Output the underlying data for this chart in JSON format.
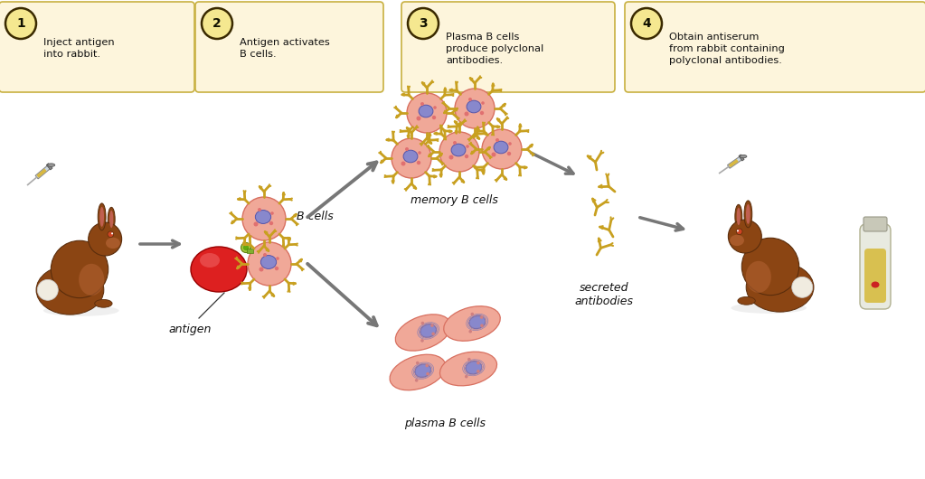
{
  "bg_color": "#ffffff",
  "box_bg": "#fdf5dc",
  "box_edge": "#c8b040",
  "circle_bg": "#f5e890",
  "circle_edge": "#3a2a00",
  "text_color": "#111111",
  "label_color": "#111111",
  "arrow_color": "#777777",
  "step1_text": "Inject antigen\ninto rabbit.",
  "step2_text": "Antigen activates\nB cells.",
  "step3_text": "Plasma B cells\nproduce polyclonal\nantibodies.",
  "step4_text": "Obtain antiserum\nfrom rabbit containing\npolyclonal antibodies.",
  "label_bcells": "B cells",
  "label_antigen": "antigen",
  "label_memory": "memory B cells",
  "label_plasma": "plasma B cells",
  "label_secreted": "secreted\nantibodies",
  "cell_color": "#f0a898",
  "cell_edge": "#d87060",
  "nucleus_color": "#8888cc",
  "nucleus_edge": "#5555aa",
  "antibody_color": "#c8a020",
  "antigen_color": "#dd2222",
  "plasma_color": "#f0a898",
  "rabbit_body": "#8b4513",
  "rabbit_dark": "#5a2d0c",
  "rabbit_light": "#b06030",
  "rabbit_white": "#f0ece0",
  "syringe_body": "#d0d8e0",
  "syringe_needle": "#aaaaaa",
  "tube_glass": "#e8ead0",
  "tube_liquid": "#d8c060",
  "figsize": [
    10.23,
    5.3
  ],
  "dpi": 100
}
